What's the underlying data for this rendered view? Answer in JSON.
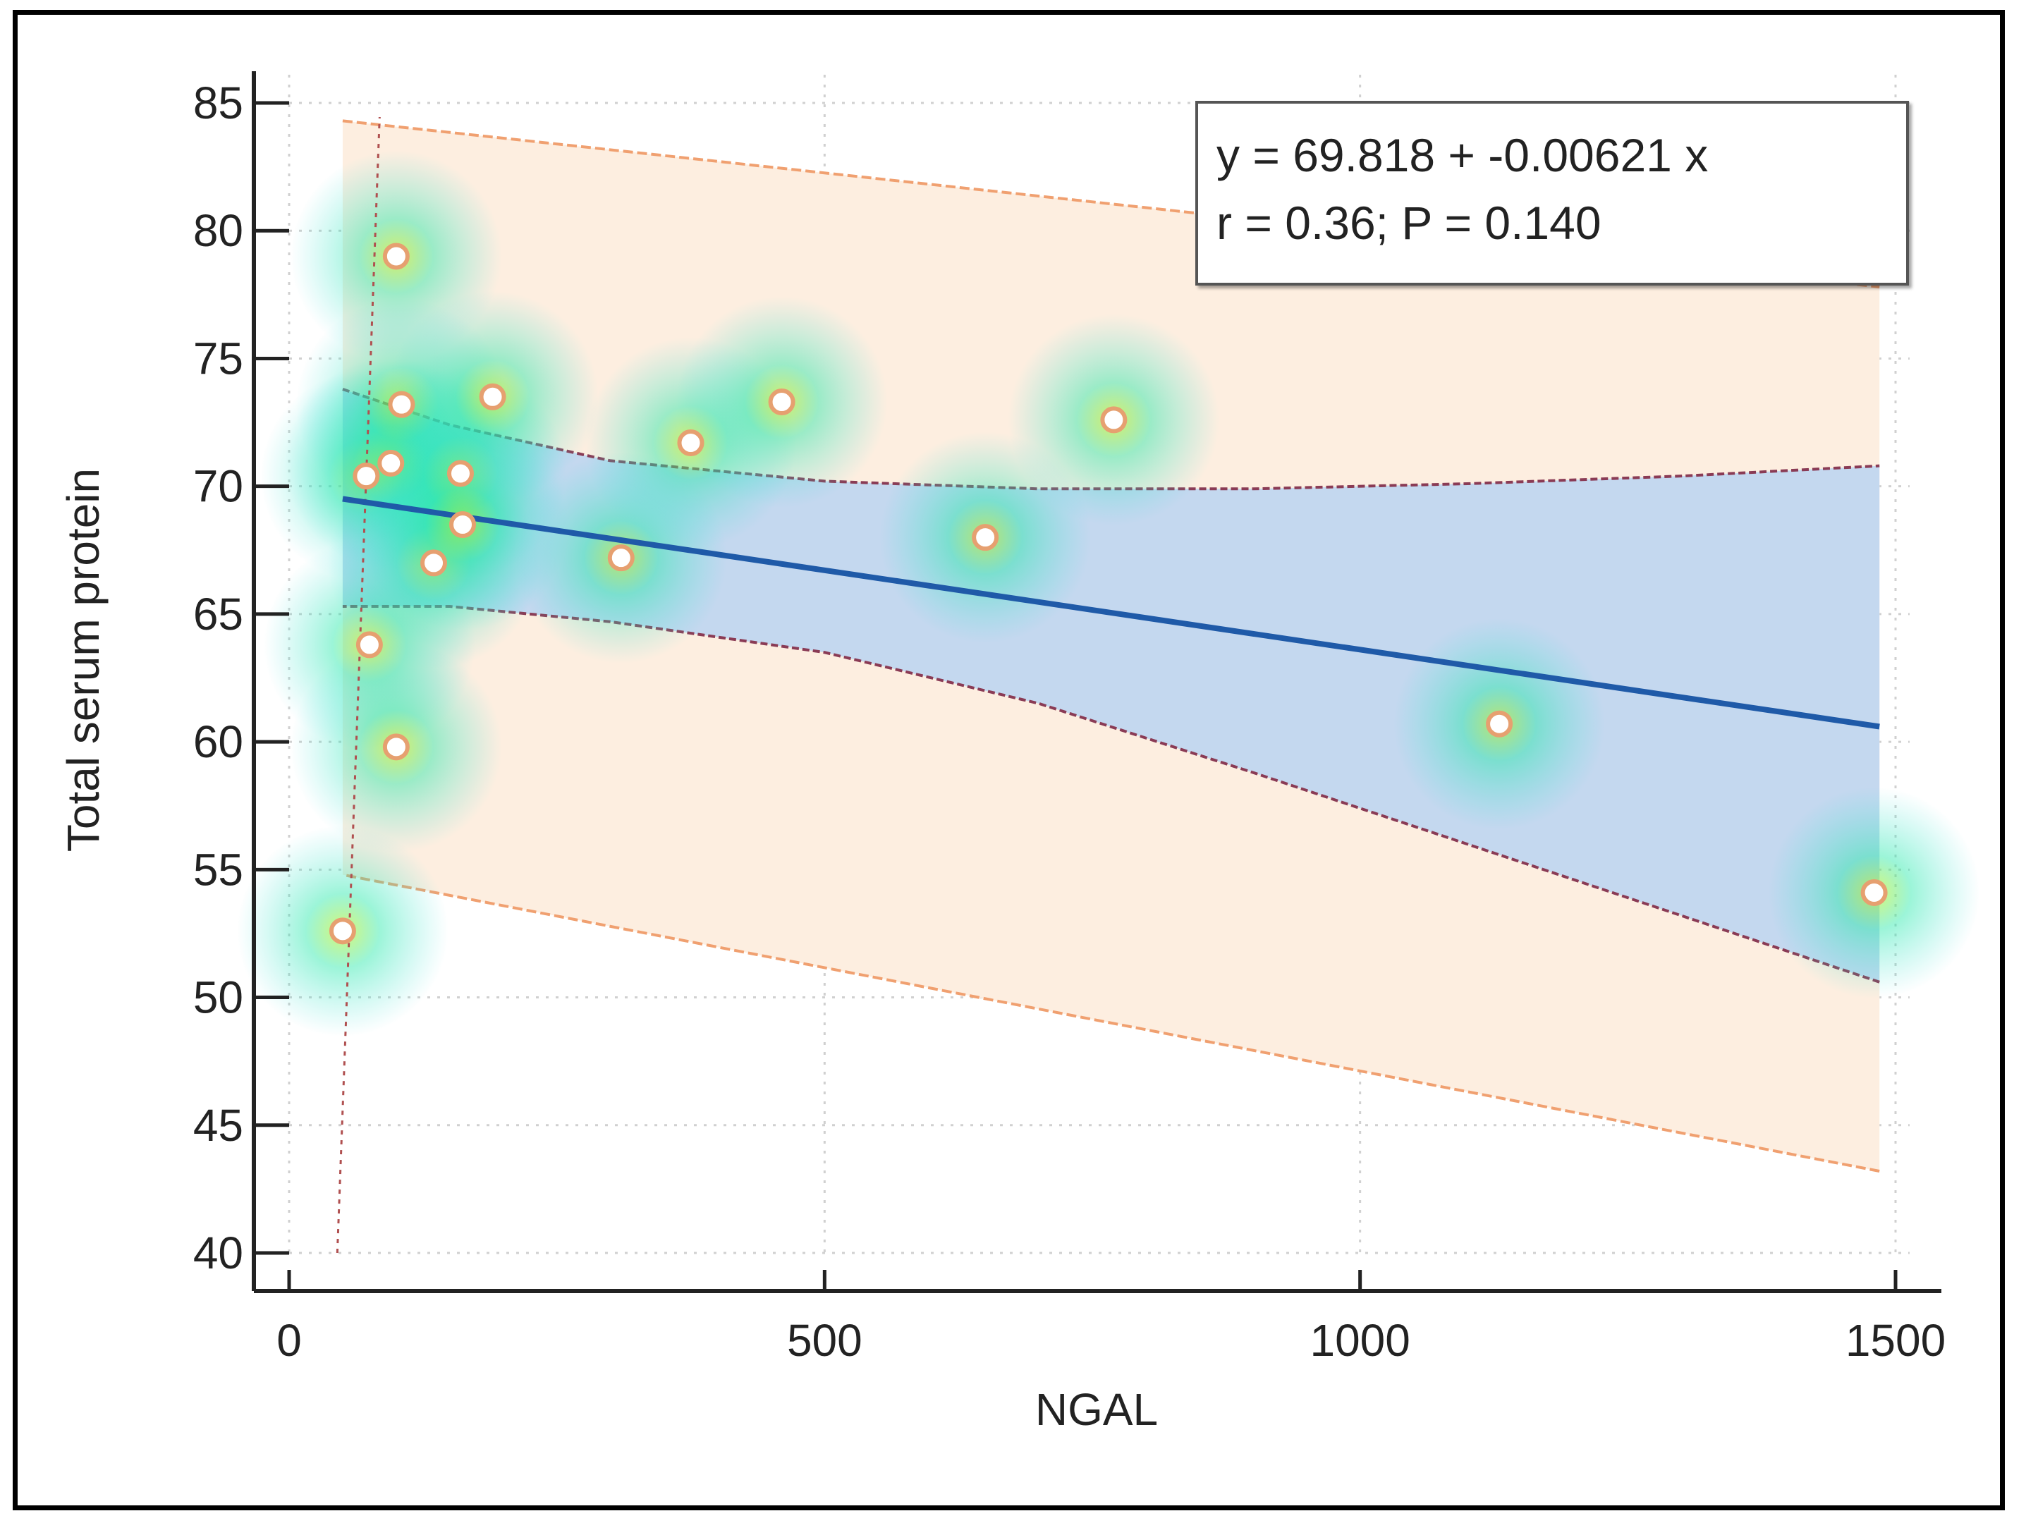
{
  "chart_data": {
    "type": "scatter",
    "title": "",
    "xlabel": "NGAL",
    "ylabel": "Total serum protein",
    "xlim": [
      0,
      1500
    ],
    "ylim": [
      40,
      85
    ],
    "xticks": [
      0,
      500,
      1000,
      1500
    ],
    "yticks": [
      40,
      45,
      50,
      55,
      60,
      65,
      70,
      75,
      80,
      85
    ],
    "grid": true,
    "legend": "none",
    "annotation": {
      "line1": "y = 69.818 + -0.00621 x",
      "line2": "r = 0.36; P = 0.140",
      "position": "top-right"
    },
    "regression": {
      "intercept": 69.818,
      "slope": -0.00621,
      "x_range": [
        50,
        1485
      ]
    },
    "confidence_band": {
      "x": [
        50,
        150,
        300,
        500,
        700,
        900,
        1100,
        1300,
        1485
      ],
      "upper": [
        73.8,
        72.4,
        71.0,
        70.2,
        69.9,
        69.9,
        70.1,
        70.4,
        70.8
      ],
      "lower": [
        65.3,
        65.3,
        64.7,
        63.5,
        61.5,
        58.8,
        56.0,
        53.2,
        50.6
      ]
    },
    "prediction_band": {
      "x": [
        50,
        1485
      ],
      "upper": [
        84.3,
        77.8
      ],
      "lower": [
        54.8,
        43.2
      ]
    },
    "reference_line_x": 45,
    "points": [
      {
        "x": 50,
        "y": 52.6
      },
      {
        "x": 72,
        "y": 70.4
      },
      {
        "x": 75,
        "y": 63.8
      },
      {
        "x": 95,
        "y": 70.9
      },
      {
        "x": 100,
        "y": 79.0
      },
      {
        "x": 100,
        "y": 59.8
      },
      {
        "x": 105,
        "y": 73.2
      },
      {
        "x": 135,
        "y": 67.0
      },
      {
        "x": 160,
        "y": 70.5
      },
      {
        "x": 162,
        "y": 68.5
      },
      {
        "x": 190,
        "y": 73.5
      },
      {
        "x": 310,
        "y": 67.2
      },
      {
        "x": 375,
        "y": 71.7
      },
      {
        "x": 460,
        "y": 73.3
      },
      {
        "x": 650,
        "y": 68.0
      },
      {
        "x": 770,
        "y": 72.6
      },
      {
        "x": 1130,
        "y": 60.7
      },
      {
        "x": 1480,
        "y": 54.1
      }
    ],
    "colors": {
      "regression_line": "#1f5aa8",
      "confidence_fill": "#c4d8ef",
      "confidence_edge": "#8a3b55",
      "prediction_fill": "#fdeee0",
      "prediction_edge": "#f0a070",
      "reference_line": "#b05050",
      "point_fill": "#ffffff",
      "point_edge": "#e6a070",
      "grid": "#d0d0d0",
      "axis": "#222222"
    }
  }
}
